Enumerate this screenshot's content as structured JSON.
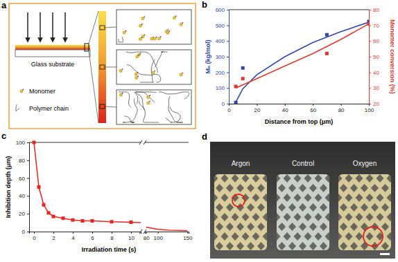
{
  "panels": {
    "a": {
      "label": "a",
      "substrate": "Glass substrate",
      "monomer": "Monomer",
      "polymer": "Polymer chain"
    },
    "d": {
      "label": "d",
      "samples": [
        "Argon",
        "Control",
        "Oxygen"
      ]
    }
  },
  "chart_data": [
    {
      "type": "line",
      "panel_label": "b",
      "xlabel": "Distance from top (μm)",
      "ylabel": "Mₙ (kg/mol)",
      "y2label": "Monomer conversion (%)",
      "xlim": [
        0,
        100
      ],
      "xticks": [
        0,
        20,
        40,
        60,
        80,
        100
      ],
      "ylim": [
        0,
        600
      ],
      "yticks": [
        0,
        100,
        200,
        300,
        400,
        500,
        600
      ],
      "y2lim": [
        20,
        80
      ],
      "y2ticks": [
        20,
        30,
        40,
        50,
        60,
        70,
        80
      ],
      "series": [
        {
          "type": "scatter",
          "marker": "square",
          "color": "#3348a8",
          "x": [
            5,
            10,
            70,
            100
          ],
          "values": [
            8,
            228,
            440,
            525
          ]
        },
        {
          "type": "line",
          "marker": "none",
          "color": "#3348a8",
          "x": [
            5,
            10,
            20,
            40,
            60,
            80,
            100
          ],
          "values": [
            10,
            95,
            185,
            300,
            390,
            460,
            520
          ]
        },
        {
          "type": "scatter",
          "marker": "square",
          "color": "#e03a2f",
          "axis": "y2",
          "x": [
            5,
            10,
            70,
            100
          ],
          "values": [
            31,
            36,
            52,
            71
          ]
        },
        {
          "type": "line",
          "marker": "none",
          "color": "#e03a2f",
          "axis": "y2",
          "x": [
            5,
            20,
            40,
            60,
            80,
            100
          ],
          "values": [
            30,
            36,
            44,
            52,
            61,
            71
          ]
        }
      ]
    },
    {
      "type": "line",
      "panel_label": "c",
      "xlabel": "Irradiation time (s)",
      "ylabel": "Inhibition depth (μm)",
      "xlim": [
        [
          -0.5,
          11
        ],
        [
          78,
          152
        ]
      ],
      "xticks": [
        0,
        2,
        4,
        6,
        8,
        10,
        80,
        100,
        150
      ],
      "ylim": [
        0,
        100
      ],
      "yticks": [
        0,
        20,
        40,
        60,
        80,
        100
      ],
      "series": [
        {
          "marker": "square",
          "color": "#e8251f",
          "x": [
            0,
            0.5,
            1,
            1.5,
            2,
            3,
            4,
            5,
            6,
            8,
            10
          ],
          "values": [
            100,
            50,
            30,
            21,
            17,
            15,
            13,
            12,
            12,
            11,
            10.5
          ]
        },
        {
          "marker": "none",
          "color": "#e8251f",
          "x": [
            10,
            11
          ],
          "values": [
            10.5,
            10
          ]
        },
        {
          "marker": "none",
          "color": "#e8251f",
          "x": [
            80,
            100,
            120,
            150
          ],
          "values": [
            5,
            2.5,
            1.5,
            1
          ]
        }
      ]
    }
  ]
}
